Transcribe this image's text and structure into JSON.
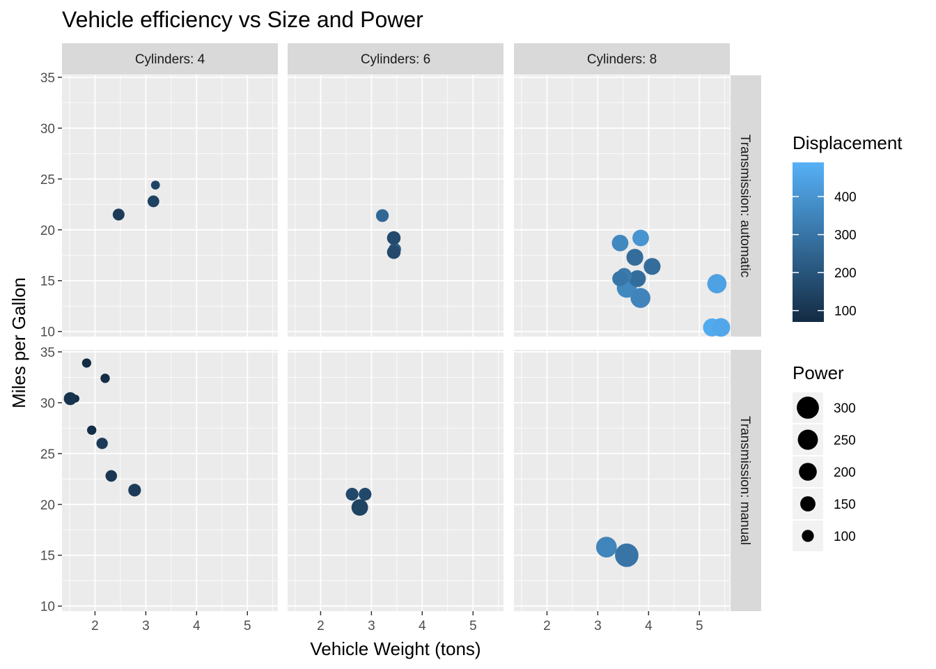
{
  "chart_data": {
    "type": "scatter",
    "title": "Vehicle efficiency vs Size and Power",
    "xlabel": "Vehicle Weight (tons)",
    "ylabel": "Miles per Gallon",
    "xlim": [
      1.35,
      5.6
    ],
    "ylim": [
      9.5,
      35.2
    ],
    "x_ticks": [
      2,
      3,
      4,
      5
    ],
    "y_ticks": [
      10,
      15,
      20,
      25,
      30,
      35
    ],
    "grid": true,
    "facet_cols": [
      {
        "label": "Cylinders: 4"
      },
      {
        "label": "Cylinders: 6"
      },
      {
        "label": "Cylinders: 8"
      }
    ],
    "facet_rows": [
      {
        "label": "Transmission: automatic"
      },
      {
        "label": "Transmission: manual"
      }
    ],
    "legend_color": {
      "title": "Displacement",
      "placement": "right",
      "range": [
        70,
        490
      ],
      "low_color": "#132B43",
      "high_color": "#56B1F7",
      "ticks": [
        100,
        200,
        300,
        400
      ]
    },
    "legend_size": {
      "title": "Power",
      "placement": "right",
      "range": [
        50,
        340
      ],
      "ticks": [
        300,
        250,
        200,
        150,
        100
      ]
    },
    "points": [
      {
        "col": 0,
        "row": 0,
        "x": 3.19,
        "y": 24.4,
        "disp": 146.7,
        "hp": 62
      },
      {
        "col": 0,
        "row": 0,
        "x": 3.15,
        "y": 22.8,
        "disp": 140.8,
        "hp": 95
      },
      {
        "col": 0,
        "row": 0,
        "x": 2.465,
        "y": 21.5,
        "disp": 120.1,
        "hp": 97
      },
      {
        "col": 1,
        "row": 0,
        "x": 3.215,
        "y": 21.4,
        "disp": 258.0,
        "hp": 110
      },
      {
        "col": 1,
        "row": 0,
        "x": 3.46,
        "y": 18.1,
        "disp": 225.0,
        "hp": 105
      },
      {
        "col": 1,
        "row": 0,
        "x": 3.44,
        "y": 19.2,
        "disp": 167.6,
        "hp": 123
      },
      {
        "col": 1,
        "row": 0,
        "x": 3.44,
        "y": 17.8,
        "disp": 167.6,
        "hp": 123
      },
      {
        "col": 2,
        "row": 0,
        "x": 3.44,
        "y": 18.7,
        "disp": 360.0,
        "hp": 175
      },
      {
        "col": 2,
        "row": 0,
        "x": 3.57,
        "y": 14.3,
        "disp": 360.0,
        "hp": 245
      },
      {
        "col": 2,
        "row": 0,
        "x": 4.07,
        "y": 16.4,
        "disp": 275.8,
        "hp": 180
      },
      {
        "col": 2,
        "row": 0,
        "x": 3.73,
        "y": 17.3,
        "disp": 275.8,
        "hp": 180
      },
      {
        "col": 2,
        "row": 0,
        "x": 3.78,
        "y": 15.2,
        "disp": 275.8,
        "hp": 180
      },
      {
        "col": 2,
        "row": 0,
        "x": 5.25,
        "y": 10.4,
        "disp": 472.0,
        "hp": 205
      },
      {
        "col": 2,
        "row": 0,
        "x": 5.424,
        "y": 10.4,
        "disp": 460.0,
        "hp": 215
      },
      {
        "col": 2,
        "row": 0,
        "x": 5.345,
        "y": 14.7,
        "disp": 440.0,
        "hp": 230
      },
      {
        "col": 2,
        "row": 0,
        "x": 3.52,
        "y": 15.5,
        "disp": 318.0,
        "hp": 150
      },
      {
        "col": 2,
        "row": 0,
        "x": 3.435,
        "y": 15.2,
        "disp": 304.0,
        "hp": 150
      },
      {
        "col": 2,
        "row": 0,
        "x": 3.84,
        "y": 13.3,
        "disp": 350.0,
        "hp": 245
      },
      {
        "col": 2,
        "row": 0,
        "x": 3.845,
        "y": 19.2,
        "disp": 400.0,
        "hp": 175
      },
      {
        "col": 0,
        "row": 1,
        "x": 2.2,
        "y": 32.4,
        "disp": 78.7,
        "hp": 66
      },
      {
        "col": 0,
        "row": 1,
        "x": 1.615,
        "y": 30.4,
        "disp": 75.7,
        "hp": 52
      },
      {
        "col": 0,
        "row": 1,
        "x": 1.835,
        "y": 33.9,
        "disp": 71.1,
        "hp": 65
      },
      {
        "col": 0,
        "row": 1,
        "x": 1.935,
        "y": 27.3,
        "disp": 79.0,
        "hp": 66
      },
      {
        "col": 0,
        "row": 1,
        "x": 2.14,
        "y": 26.0,
        "disp": 120.3,
        "hp": 91
      },
      {
        "col": 0,
        "row": 1,
        "x": 1.513,
        "y": 30.4,
        "disp": 95.1,
        "hp": 113
      },
      {
        "col": 0,
        "row": 1,
        "x": 2.78,
        "y": 21.4,
        "disp": 121.0,
        "hp": 109
      },
      {
        "col": 0,
        "row": 1,
        "x": 2.32,
        "y": 22.8,
        "disp": 108.0,
        "hp": 93
      },
      {
        "col": 1,
        "row": 1,
        "x": 2.62,
        "y": 21.0,
        "disp": 160.0,
        "hp": 110
      },
      {
        "col": 1,
        "row": 1,
        "x": 2.875,
        "y": 21.0,
        "disp": 160.0,
        "hp": 110
      },
      {
        "col": 1,
        "row": 1,
        "x": 2.77,
        "y": 19.7,
        "disp": 145.0,
        "hp": 175
      },
      {
        "col": 2,
        "row": 1,
        "x": 3.17,
        "y": 15.8,
        "disp": 351.0,
        "hp": 264
      },
      {
        "col": 2,
        "row": 1,
        "x": 3.57,
        "y": 15.0,
        "disp": 301.0,
        "hp": 335
      }
    ]
  }
}
